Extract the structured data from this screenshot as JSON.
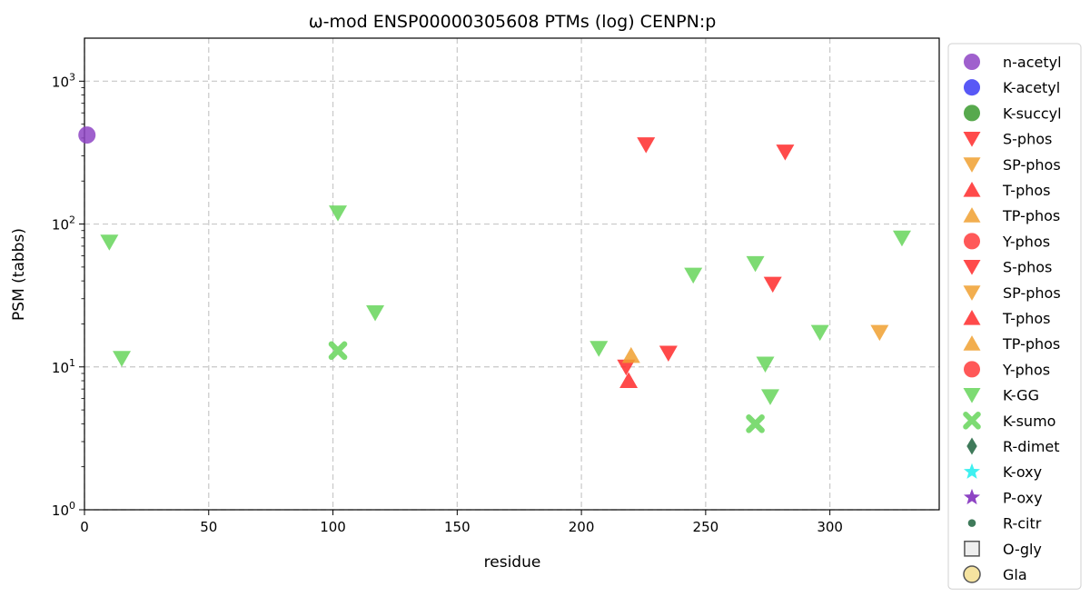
{
  "chart_data": {
    "type": "scatter",
    "title": "ω-mod ENSP00000305608 PTMs (log) CENPN:p",
    "xlabel": "residue",
    "ylabel": "PSM (tabbs)",
    "xlim": [
      0,
      344
    ],
    "ylim": [
      1,
      2000
    ],
    "y_scale": "log",
    "grid": true,
    "legend_placement": "right, outside plot",
    "x_ticks": [
      "0",
      "50",
      "100",
      "150",
      "200",
      "250",
      "300"
    ],
    "x_tick_values": [
      0,
      50,
      100,
      150,
      200,
      250,
      300
    ],
    "y_tick_values": [
      1,
      10,
      100,
      1000
    ],
    "series": [
      {
        "name": "n-acetyl",
        "marker": "circle",
        "color": "#8e44c4",
        "points": [
          [
            1,
            420
          ]
        ]
      },
      {
        "name": "K-acetyl",
        "marker": "circle",
        "color": "#3b3bf5",
        "points": []
      },
      {
        "name": "K-succyl",
        "marker": "circle",
        "color": "#3a9a2e",
        "points": []
      },
      {
        "name": "S-phos",
        "marker": "triangle-down",
        "color": "#ff2a2a",
        "points": [
          [
            226,
            360
          ],
          [
            282,
            320
          ],
          [
            277,
            38
          ],
          [
            235,
            12.5
          ],
          [
            218,
            10
          ]
        ]
      },
      {
        "name": "SP-phos",
        "marker": "triangle-down",
        "color": "#f0a030",
        "points": [
          [
            320,
            17.5
          ]
        ]
      },
      {
        "name": "T-phos",
        "marker": "triangle-up",
        "color": "#ff2a2a",
        "points": [
          [
            219,
            8
          ]
        ]
      },
      {
        "name": "TP-phos",
        "marker": "triangle-up",
        "color": "#f0a030",
        "points": [
          [
            220,
            12
          ]
        ]
      },
      {
        "name": "Y-phos",
        "marker": "circle",
        "color": "#ff3b3b",
        "points": []
      },
      {
        "name": "S-phos",
        "marker": "triangle-down",
        "color": "#ff2a2a",
        "points": []
      },
      {
        "name": "SP-phos",
        "marker": "triangle-down",
        "color": "#f0a030",
        "points": []
      },
      {
        "name": "T-phos",
        "marker": "triangle-up",
        "color": "#ff2a2a",
        "points": []
      },
      {
        "name": "TP-phos",
        "marker": "triangle-up",
        "color": "#f0a030",
        "points": []
      },
      {
        "name": "Y-phos",
        "marker": "circle",
        "color": "#ff3b3b",
        "points": []
      },
      {
        "name": "K-GG",
        "marker": "triangle-down",
        "color": "#66d55a",
        "points": [
          [
            10,
            75
          ],
          [
            15,
            11.5
          ],
          [
            102,
            120
          ],
          [
            117,
            24
          ],
          [
            207,
            13.5
          ],
          [
            245,
            44
          ],
          [
            270,
            53
          ],
          [
            274,
            10.5
          ],
          [
            276,
            6.2
          ],
          [
            296,
            17.5
          ],
          [
            329,
            80
          ]
        ]
      },
      {
        "name": "K-sumo",
        "marker": "x",
        "color": "#66d55a",
        "points": [
          [
            102,
            13
          ],
          [
            270,
            4
          ]
        ]
      },
      {
        "name": "R-dimet",
        "marker": "diamond",
        "color": "#3f7a5a",
        "points": []
      },
      {
        "name": "K-oxy",
        "marker": "star",
        "color": "#3ff0f0",
        "points": []
      },
      {
        "name": "P-oxy",
        "marker": "star",
        "color": "#8e44c4",
        "points": []
      },
      {
        "name": "R-citr",
        "marker": "dot",
        "color": "#3f7a5a",
        "points": []
      },
      {
        "name": "O-gly",
        "marker": "square",
        "color": "#eeeeee",
        "points": []
      },
      {
        "name": "Gla",
        "marker": "circle-outline",
        "color": "#f5e3a0",
        "points": []
      }
    ]
  }
}
